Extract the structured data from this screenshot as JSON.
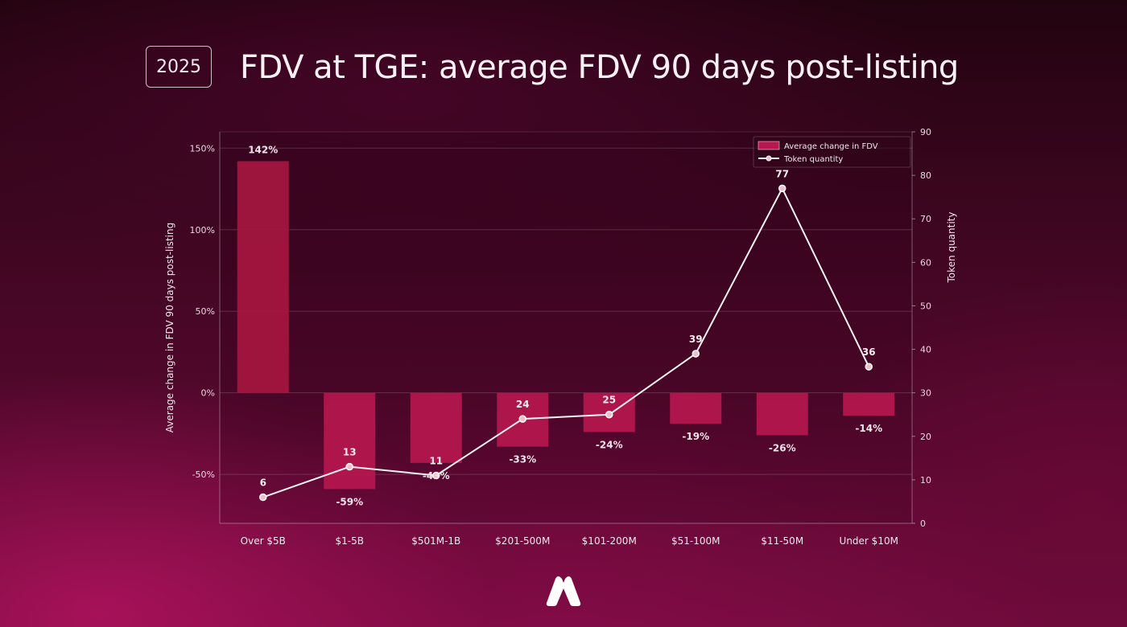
{
  "header": {
    "year_badge": "2025",
    "title": "FDV at TGE: average FDV 90 days post-listing"
  },
  "colors": {
    "bar": "#b8174f",
    "bar_top": "#a8163f",
    "line": "#f2f2f2",
    "marker_fill": "#f2bcc8",
    "grid": "rgba(255,255,255,0.16)"
  },
  "chart_data": {
    "type": "bar",
    "title": "",
    "categories": [
      "Over $5B",
      "$1-5B",
      "$501M-1B",
      "$201-500M",
      "$101-200M",
      "$51-100M",
      "$11-50M",
      "Under $10M"
    ],
    "series": [
      {
        "name": "Average change in FDV",
        "type": "bar",
        "axis": "left",
        "values": [
          142,
          -59,
          -43,
          -33,
          -24,
          -19,
          -26,
          -14
        ],
        "labels": [
          "142%",
          "-59%",
          "-43%",
          "-33%",
          "-24%",
          "-19%",
          "-26%",
          "-14%"
        ]
      },
      {
        "name": "Token quantity",
        "type": "line",
        "axis": "right",
        "values": [
          6,
          13,
          11,
          24,
          25,
          39,
          77,
          36
        ],
        "labels": [
          "6",
          "13",
          "11",
          "24",
          "25",
          "39",
          "77",
          "36"
        ]
      }
    ],
    "ylabel": "Average change in FDV 90 days post-listing",
    "y2label": "Token quantity",
    "ylim": [
      -80,
      160
    ],
    "y2lim": [
      0,
      90
    ],
    "yticks": [
      150,
      100,
      50,
      0,
      -50
    ],
    "ytick_labels": [
      "150%",
      "100%",
      "50%",
      "0%",
      "-50%"
    ],
    "y2ticks": [
      90,
      80,
      70,
      60,
      50,
      40,
      30,
      20,
      10,
      0
    ],
    "y2tick_labels": [
      "90",
      "80",
      "70",
      "60",
      "50",
      "40",
      "30",
      "20",
      "10",
      "0"
    ],
    "grid": true,
    "legend_position": "top-right"
  }
}
